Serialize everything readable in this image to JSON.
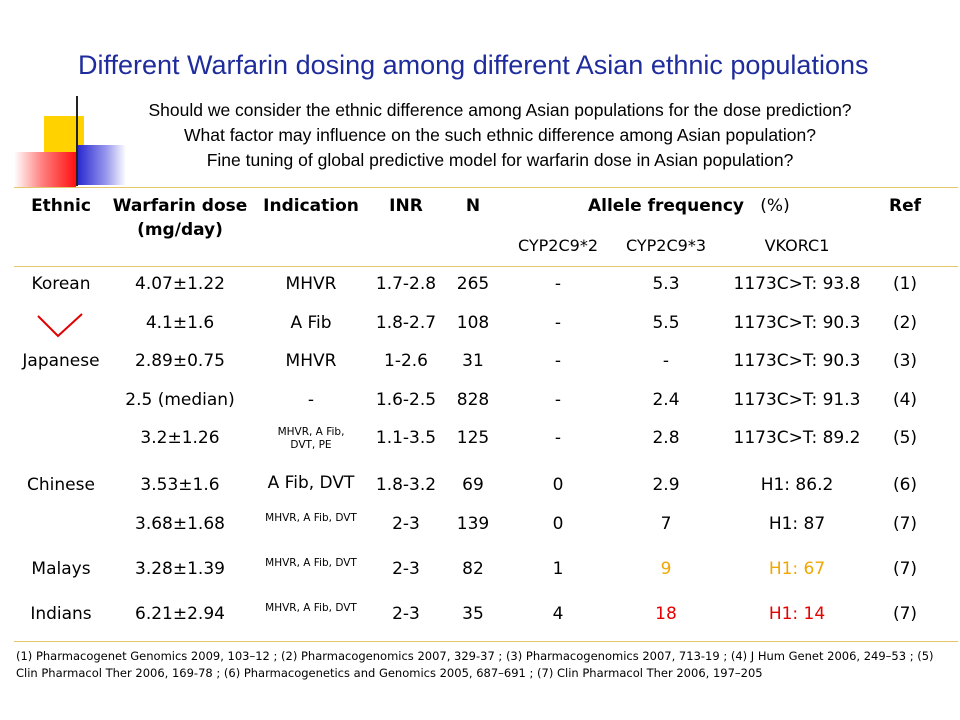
{
  "title": "Different Warfarin dosing among different Asian ethnic populations",
  "questions": [
    "Should we consider the ethnic difference among Asian populations for the dose prediction?",
    "What factor may influence on the such ethnic difference among Asian population?",
    "Fine tuning of global predictive model for warfarin dose in Asian population?"
  ],
  "headers": {
    "ethnic": "Ethnic",
    "dose": "Warfarin dose",
    "dose_unit": "(mg/day)",
    "indication": "Indication",
    "inr": "INR",
    "n": "N",
    "allele": "Allele frequency",
    "allele_unit": "(%)",
    "ref": "Ref",
    "cyp2c9_2": "CYP2C9*2",
    "cyp2c9_3": "CYP2C9*3",
    "vkorc1": "VKORC1"
  },
  "rows": [
    {
      "ethnic": "Korean",
      "dose": "4.07±1.22",
      "indication": "MHVR",
      "inr": "1.7-2.8",
      "n": "265",
      "c2": "-",
      "c3": "5.3",
      "vk": "1173C>T: 93.8",
      "ref": "(1)"
    },
    {
      "ethnic": "",
      "dose": "4.1±1.6",
      "indication": "A Fib",
      "inr": "1.8-2.7",
      "n": "108",
      "c2": "-",
      "c3": "5.5",
      "vk": "1173C>T: 90.3",
      "ref": "(2)"
    },
    {
      "ethnic": "Japanese",
      "dose": "2.89±0.75",
      "indication": "MHVR",
      "inr": "1-2.6",
      "n": "31",
      "c2": "-",
      "c3": "-",
      "vk": "1173C>T: 90.3",
      "ref": "(3)"
    },
    {
      "ethnic": "",
      "dose": "2.5 (median)",
      "indication": "-",
      "inr": "1.6-2.5",
      "n": "828",
      "c2": "-",
      "c3": "2.4",
      "vk": "1173C>T: 91.3",
      "ref": "(4)"
    },
    {
      "ethnic": "",
      "dose": "3.2±1.26",
      "indication": "MHVR, A Fib, DVT, PE",
      "inr": "1.1-3.5",
      "n": "125",
      "c2": "-",
      "c3": "2.8",
      "vk": "1173C>T: 89.2",
      "ref": "(5)"
    },
    {
      "ethnic": "Chinese",
      "dose": "3.53±1.6",
      "indication": "A Fib, DVT",
      "inr": "1.8-3.2",
      "n": "69",
      "c2": "0",
      "c3": "2.9",
      "vk": "H1: 86.2",
      "ref": "(6)"
    },
    {
      "ethnic": "",
      "dose": "3.68±1.68",
      "indication": "MHVR, A Fib, DVT",
      "inr": "2-3",
      "n": "139",
      "c2": "0",
      "c3": "7",
      "vk": "H1: 87",
      "ref": "(7)"
    },
    {
      "ethnic": "Malays",
      "dose": "3.28±1.39",
      "indication": "MHVR, A Fib, DVT",
      "inr": "2-3",
      "n": "82",
      "c2": "1",
      "c3": "9",
      "vk": "H1: 67",
      "ref": "(7)"
    },
    {
      "ethnic": "Indians",
      "dose": "6.21±2.94",
      "indication": "MHVR, A Fib, DVT",
      "inr": "2-3",
      "n": "35",
      "c2": "4",
      "c3": "18",
      "vk": "H1: 14",
      "ref": "(7)"
    }
  ],
  "colors": {
    "title": "#1f2c9c",
    "highlight_orange": "#f0a800",
    "highlight_red": "#e80000",
    "rule": "#e3c76a",
    "checkmark": "#e00000"
  },
  "references": "(1) Pharmacogenet Genomics 2009, 103–12 ; (2) Pharmacogenomics 2007, 329-37 ; (3) Pharmacogenomics 2007, 713-19 ; (4) J Hum Genet 2006, 249–53 ; (5) Clin Pharmacol Ther 2006, 169-78 ; (6) Pharmacogenetics and Genomics 2005, 687–691 ; (7) Clin Pharmacol Ther 2006, 197–205",
  "icons": {
    "annotation": "red-check-mark-icon"
  }
}
